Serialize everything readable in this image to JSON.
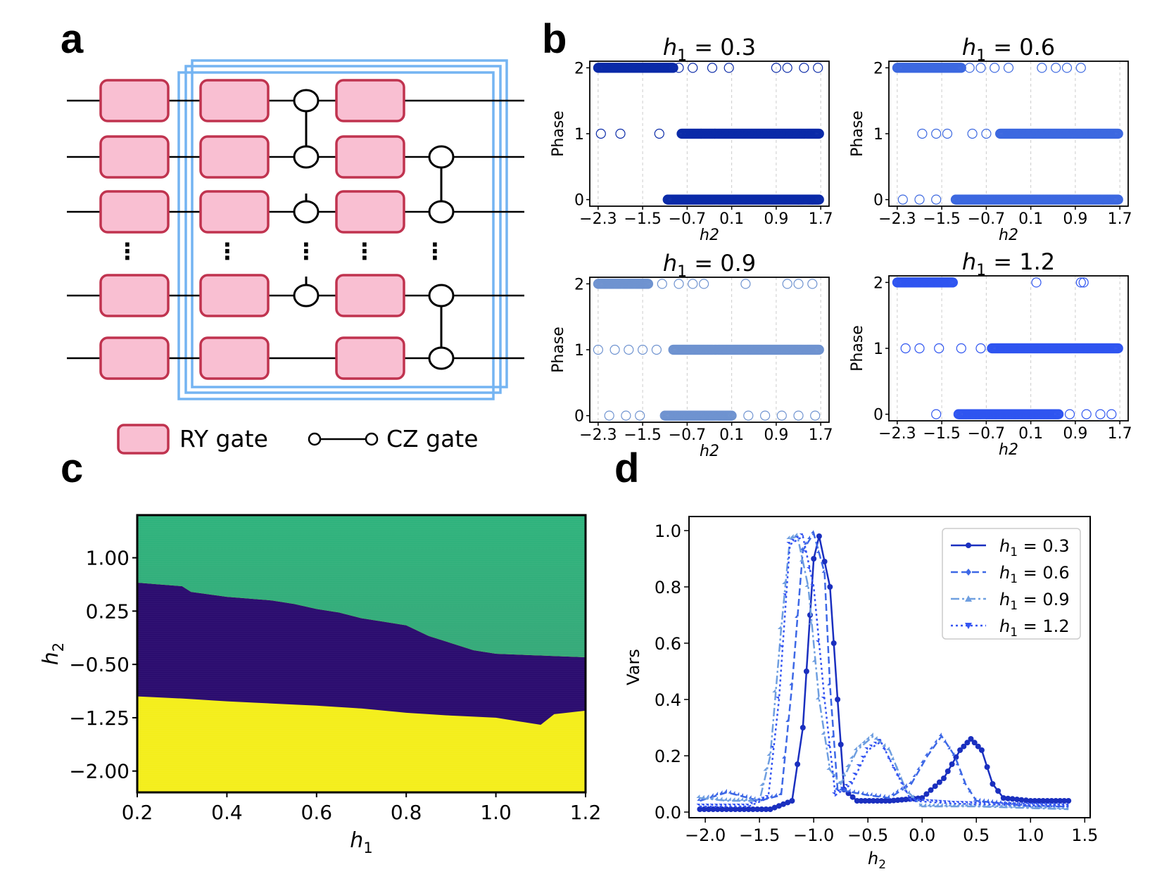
{
  "panels": {
    "a": "a",
    "b": "b",
    "c": "c",
    "d": "d"
  },
  "colors": {
    "gate_fill": "#f9bfd2",
    "gate_stroke": "#c0334f",
    "frame": "#74b4f2",
    "series": [
      "#1a2fbf",
      "#3d68e6",
      "#6f9fe0",
      "#3555f2"
    ],
    "scatter": [
      "#0a2aa8",
      "#3c68e0",
      "#6f93d0",
      "#2f55f0"
    ],
    "heat_top": "#2eb37c",
    "heat_mid": "#2a0b6e",
    "heat_bottom": "#f4ee1a"
  },
  "circuit": {
    "legend_ry": "RY gate",
    "legend_cz": "CZ gate",
    "dots": "⋮",
    "gate_columns": 3,
    "qubit_rows_shown": 5
  },
  "chart_data": [
    {
      "id": "b1",
      "type": "scatter",
      "title_var": "h",
      "title_sub": "1",
      "title_val": " = 0.3",
      "xlabel": "h2",
      "ylabel": "Phase",
      "xlim": [
        -2.45,
        1.85
      ],
      "ylim": [
        -0.1,
        2.1
      ],
      "xticks": [
        -2.3,
        -1.5,
        -0.7,
        0.1,
        0.9,
        1.7
      ],
      "xtick_labels": [
        "−2.3",
        "−1.5",
        "−0.7",
        "0.1",
        "0.9",
        "1.7"
      ],
      "yticks": [
        0,
        1,
        2
      ],
      "ytick_labels": [
        "0",
        "1",
        "2"
      ],
      "grid": "x-dashed",
      "phase_ranges": [
        {
          "phase": 2,
          "from": -2.3,
          "to": -0.95
        },
        {
          "phase": 1,
          "from": -0.8,
          "to": 1.67
        },
        {
          "phase": 0,
          "from": -1.05,
          "to": 1.67
        }
      ],
      "sparse_points": [
        [
          -0.85,
          2
        ],
        [
          -0.6,
          2
        ],
        [
          -0.25,
          2
        ],
        [
          0.05,
          2
        ],
        [
          0.9,
          2
        ],
        [
          1.1,
          2
        ],
        [
          1.4,
          2
        ],
        [
          1.65,
          2
        ],
        [
          -2.25,
          1
        ],
        [
          -1.9,
          1
        ],
        [
          -1.2,
          1
        ],
        [
          -0.45,
          1
        ],
        [
          -0.2,
          1
        ],
        [
          1.3,
          0
        ],
        [
          1.55,
          0
        ]
      ]
    },
    {
      "id": "b2",
      "type": "scatter",
      "title_var": "h",
      "title_sub": "1",
      "title_val": " = 0.6",
      "xlabel": "h2",
      "ylabel": "Phase",
      "xlim": [
        -2.45,
        1.85
      ],
      "ylim": [
        -0.1,
        2.1
      ],
      "xticks": [
        -2.3,
        -1.5,
        -0.7,
        0.1,
        0.9,
        1.7
      ],
      "xtick_labels": [
        "−2.3",
        "−1.5",
        "−0.7",
        "0.1",
        "0.9",
        "1.7"
      ],
      "yticks": [
        0,
        1,
        2
      ],
      "ytick_labels": [
        "0",
        "1",
        "2"
      ],
      "grid": "x-dashed",
      "phase_ranges": [
        {
          "phase": 2,
          "from": -2.3,
          "to": -1.15
        },
        {
          "phase": 1,
          "from": -0.45,
          "to": 1.67
        },
        {
          "phase": 0,
          "from": -1.25,
          "to": 1.67
        }
      ],
      "sparse_points": [
        [
          -1.0,
          2
        ],
        [
          -0.8,
          2
        ],
        [
          -0.55,
          2
        ],
        [
          -0.3,
          2
        ],
        [
          0.3,
          2
        ],
        [
          0.55,
          2
        ],
        [
          0.75,
          2
        ],
        [
          1.0,
          2
        ],
        [
          -1.85,
          1
        ],
        [
          -1.6,
          1
        ],
        [
          -1.4,
          1
        ],
        [
          -0.95,
          1
        ],
        [
          -0.7,
          1
        ],
        [
          -2.2,
          0
        ],
        [
          -1.9,
          0
        ],
        [
          -1.6,
          0
        ],
        [
          1.4,
          0
        ]
      ]
    },
    {
      "id": "b3",
      "type": "scatter",
      "title_var": "h",
      "title_sub": "1",
      "title_val": " = 0.9",
      "xlabel": "h2",
      "ylabel": "Phase",
      "xlim": [
        -2.45,
        1.85
      ],
      "ylim": [
        -0.1,
        2.1
      ],
      "xticks": [
        -2.3,
        -1.5,
        -0.7,
        0.1,
        0.9,
        1.7
      ],
      "xtick_labels": [
        "−2.3",
        "−1.5",
        "−0.7",
        "0.1",
        "0.9",
        "1.7"
      ],
      "yticks": [
        0,
        1,
        2
      ],
      "ytick_labels": [
        "0",
        "1",
        "2"
      ],
      "grid": "x-dashed",
      "phase_ranges": [
        {
          "phase": 2,
          "from": -2.3,
          "to": -1.4
        },
        {
          "phase": 1,
          "from": -0.95,
          "to": 1.67
        },
        {
          "phase": 0,
          "from": -1.1,
          "to": 0.1
        }
      ],
      "sparse_points": [
        [
          -1.15,
          2
        ],
        [
          -0.85,
          2
        ],
        [
          -0.6,
          2
        ],
        [
          -0.4,
          2
        ],
        [
          0.35,
          2
        ],
        [
          1.1,
          2
        ],
        [
          1.3,
          2
        ],
        [
          1.55,
          2
        ],
        [
          -2.3,
          1
        ],
        [
          -2.0,
          1
        ],
        [
          -1.75,
          1
        ],
        [
          -1.5,
          1
        ],
        [
          -1.25,
          1
        ],
        [
          -2.1,
          0
        ],
        [
          -1.8,
          0
        ],
        [
          -1.55,
          0
        ],
        [
          0.4,
          0
        ],
        [
          0.7,
          0
        ],
        [
          1.0,
          0
        ],
        [
          1.3,
          0
        ],
        [
          1.6,
          0
        ]
      ]
    },
    {
      "id": "b4",
      "type": "scatter",
      "title_var": "h",
      "title_sub": "1",
      "title_val": " = 1.2",
      "xlabel": "h2",
      "ylabel": "Phase",
      "xlim": [
        -2.45,
        1.85
      ],
      "ylim": [
        -0.1,
        2.1
      ],
      "xticks": [
        -2.3,
        -1.5,
        -0.7,
        0.1,
        0.9,
        1.7
      ],
      "xtick_labels": [
        "−2.3",
        "−1.5",
        "−0.7",
        "0.1",
        "0.9",
        "1.7"
      ],
      "yticks": [
        0,
        1,
        2
      ],
      "ytick_labels": [
        "0",
        "1",
        "2"
      ],
      "grid": "x-dashed",
      "phase_ranges": [
        {
          "phase": 2,
          "from": -2.3,
          "to": -1.3
        },
        {
          "phase": 1,
          "from": -0.6,
          "to": 1.67
        },
        {
          "phase": 0,
          "from": -1.2,
          "to": 0.6
        }
      ],
      "sparse_points": [
        [
          0.2,
          2
        ],
        [
          1.0,
          2
        ],
        [
          1.05,
          2
        ],
        [
          -2.15,
          1
        ],
        [
          -1.9,
          1
        ],
        [
          -1.55,
          1
        ],
        [
          -1.15,
          1
        ],
        [
          -0.8,
          1
        ],
        [
          -1.6,
          0
        ],
        [
          0.8,
          0
        ],
        [
          1.1,
          0
        ],
        [
          1.35,
          0
        ],
        [
          1.55,
          0
        ]
      ]
    },
    {
      "id": "c",
      "type": "heatmap",
      "xlabel_var": "h",
      "xlabel_sub": "1",
      "ylabel_var": "h",
      "ylabel_sub": "2",
      "xlim": [
        0.2,
        1.2
      ],
      "ylim": [
        -2.3,
        1.6
      ],
      "xticks": [
        0.2,
        0.4,
        0.6,
        0.8,
        1.0,
        1.2
      ],
      "xtick_labels": [
        "0.2",
        "0.4",
        "0.6",
        "0.8",
        "1.0",
        "1.2"
      ],
      "yticks": [
        1.0,
        0.25,
        -0.5,
        -1.25,
        -2.0
      ],
      "ytick_labels": [
        "1.00",
        "0.25",
        "−0.50",
        "−1.25",
        "−2.00"
      ],
      "upper_boundary": [
        [
          0.2,
          0.65
        ],
        [
          0.3,
          0.6
        ],
        [
          0.32,
          0.52
        ],
        [
          0.4,
          0.45
        ],
        [
          0.5,
          0.4
        ],
        [
          0.55,
          0.35
        ],
        [
          0.6,
          0.28
        ],
        [
          0.65,
          0.23
        ],
        [
          0.7,
          0.15
        ],
        [
          0.75,
          0.1
        ],
        [
          0.8,
          0.05
        ],
        [
          0.85,
          -0.1
        ],
        [
          0.9,
          -0.2
        ],
        [
          0.95,
          -0.3
        ],
        [
          1.0,
          -0.35
        ],
        [
          1.2,
          -0.4
        ]
      ],
      "lower_boundary": [
        [
          0.2,
          -0.95
        ],
        [
          0.3,
          -0.98
        ],
        [
          0.4,
          -1.02
        ],
        [
          0.5,
          -1.05
        ],
        [
          0.6,
          -1.08
        ],
        [
          0.7,
          -1.12
        ],
        [
          0.8,
          -1.18
        ],
        [
          0.9,
          -1.22
        ],
        [
          1.0,
          -1.25
        ],
        [
          1.05,
          -1.3
        ],
        [
          1.1,
          -1.35
        ],
        [
          1.13,
          -1.2
        ],
        [
          1.2,
          -1.15
        ]
      ]
    },
    {
      "id": "d",
      "type": "line",
      "xlabel_var": "h",
      "xlabel_sub": "2",
      "ylabel": "Vars",
      "xlim": [
        -2.15,
        1.55
      ],
      "ylim": [
        -0.02,
        1.05
      ],
      "xticks": [
        -2.0,
        -1.5,
        -1.0,
        -0.5,
        0.0,
        0.5,
        1.0,
        1.5
      ],
      "xtick_labels": [
        "−2.0",
        "−1.5",
        "−1.0",
        "−0.5",
        "0.0",
        "0.5",
        "1.0",
        "1.5"
      ],
      "yticks": [
        0.0,
        0.2,
        0.4,
        0.6,
        0.8,
        1.0
      ],
      "ytick_labels": [
        "0.0",
        "0.2",
        "0.4",
        "0.6",
        "0.8",
        "1.0"
      ],
      "legend_placement": "upper-right",
      "series": [
        {
          "label_var": "h",
          "label_sub": "1",
          "label_val": " = 0.3",
          "marker": "circle",
          "dash": "solid",
          "points": [
            [
              -2.05,
              0.01
            ],
            [
              -1.6,
              0.01
            ],
            [
              -1.4,
              0.01
            ],
            [
              -1.2,
              0.04
            ],
            [
              -1.1,
              0.3
            ],
            [
              -1.0,
              0.9
            ],
            [
              -0.95,
              0.98
            ],
            [
              -0.85,
              0.8
            ],
            [
              -0.78,
              0.4
            ],
            [
              -0.72,
              0.08
            ],
            [
              -0.6,
              0.04
            ],
            [
              -0.3,
              0.04
            ],
            [
              0.0,
              0.05
            ],
            [
              0.2,
              0.12
            ],
            [
              0.35,
              0.22
            ],
            [
              0.45,
              0.26
            ],
            [
              0.55,
              0.22
            ],
            [
              0.65,
              0.1
            ],
            [
              0.75,
              0.05
            ],
            [
              1.0,
              0.04
            ],
            [
              1.35,
              0.04
            ]
          ]
        },
        {
          "label_var": "h",
          "label_sub": "1",
          "label_val": " = 0.6",
          "marker": "diamond",
          "dash": "dashed",
          "points": [
            [
              -2.05,
              0.04
            ],
            [
              -1.8,
              0.07
            ],
            [
              -1.5,
              0.04
            ],
            [
              -1.3,
              0.06
            ],
            [
              -1.2,
              0.45
            ],
            [
              -1.1,
              0.93
            ],
            [
              -1.0,
              0.99
            ],
            [
              -0.9,
              0.85
            ],
            [
              -0.85,
              0.45
            ],
            [
              -0.78,
              0.08
            ],
            [
              -0.5,
              0.06
            ],
            [
              -0.3,
              0.05
            ],
            [
              -0.1,
              0.1
            ],
            [
              0.05,
              0.2
            ],
            [
              0.18,
              0.27
            ],
            [
              0.3,
              0.2
            ],
            [
              0.4,
              0.1
            ],
            [
              0.5,
              0.04
            ],
            [
              1.0,
              0.02
            ],
            [
              1.35,
              0.02
            ]
          ]
        },
        {
          "label_var": "h",
          "label_sub": "1",
          "label_val": " = 0.9",
          "marker": "triangle-up",
          "dash": "dashdot",
          "points": [
            [
              -2.05,
              0.05
            ],
            [
              -1.8,
              0.04
            ],
            [
              -1.5,
              0.04
            ],
            [
              -1.4,
              0.2
            ],
            [
              -1.3,
              0.65
            ],
            [
              -1.22,
              0.97
            ],
            [
              -1.15,
              0.98
            ],
            [
              -1.05,
              0.8
            ],
            [
              -0.95,
              0.4
            ],
            [
              -0.85,
              0.15
            ],
            [
              -0.75,
              0.1
            ],
            [
              -0.6,
              0.22
            ],
            [
              -0.45,
              0.27
            ],
            [
              -0.3,
              0.22
            ],
            [
              -0.15,
              0.08
            ],
            [
              0.0,
              0.02
            ],
            [
              0.5,
              0.02
            ],
            [
              1.35,
              0.01
            ]
          ]
        },
        {
          "label_var": "h",
          "label_sub": "1",
          "label_val": " = 1.2",
          "marker": "triangle-down",
          "dash": "dotted",
          "points": [
            [
              -2.05,
              0.02
            ],
            [
              -1.6,
              0.02
            ],
            [
              -1.42,
              0.05
            ],
            [
              -1.32,
              0.4
            ],
            [
              -1.22,
              0.95
            ],
            [
              -1.1,
              0.98
            ],
            [
              -1.0,
              0.8
            ],
            [
              -0.9,
              0.4
            ],
            [
              -0.8,
              0.06
            ],
            [
              -0.65,
              0.1
            ],
            [
              -0.5,
              0.22
            ],
            [
              -0.38,
              0.25
            ],
            [
              -0.25,
              0.15
            ],
            [
              -0.1,
              0.04
            ],
            [
              0.3,
              0.03
            ],
            [
              1.35,
              0.02
            ]
          ]
        }
      ]
    }
  ]
}
